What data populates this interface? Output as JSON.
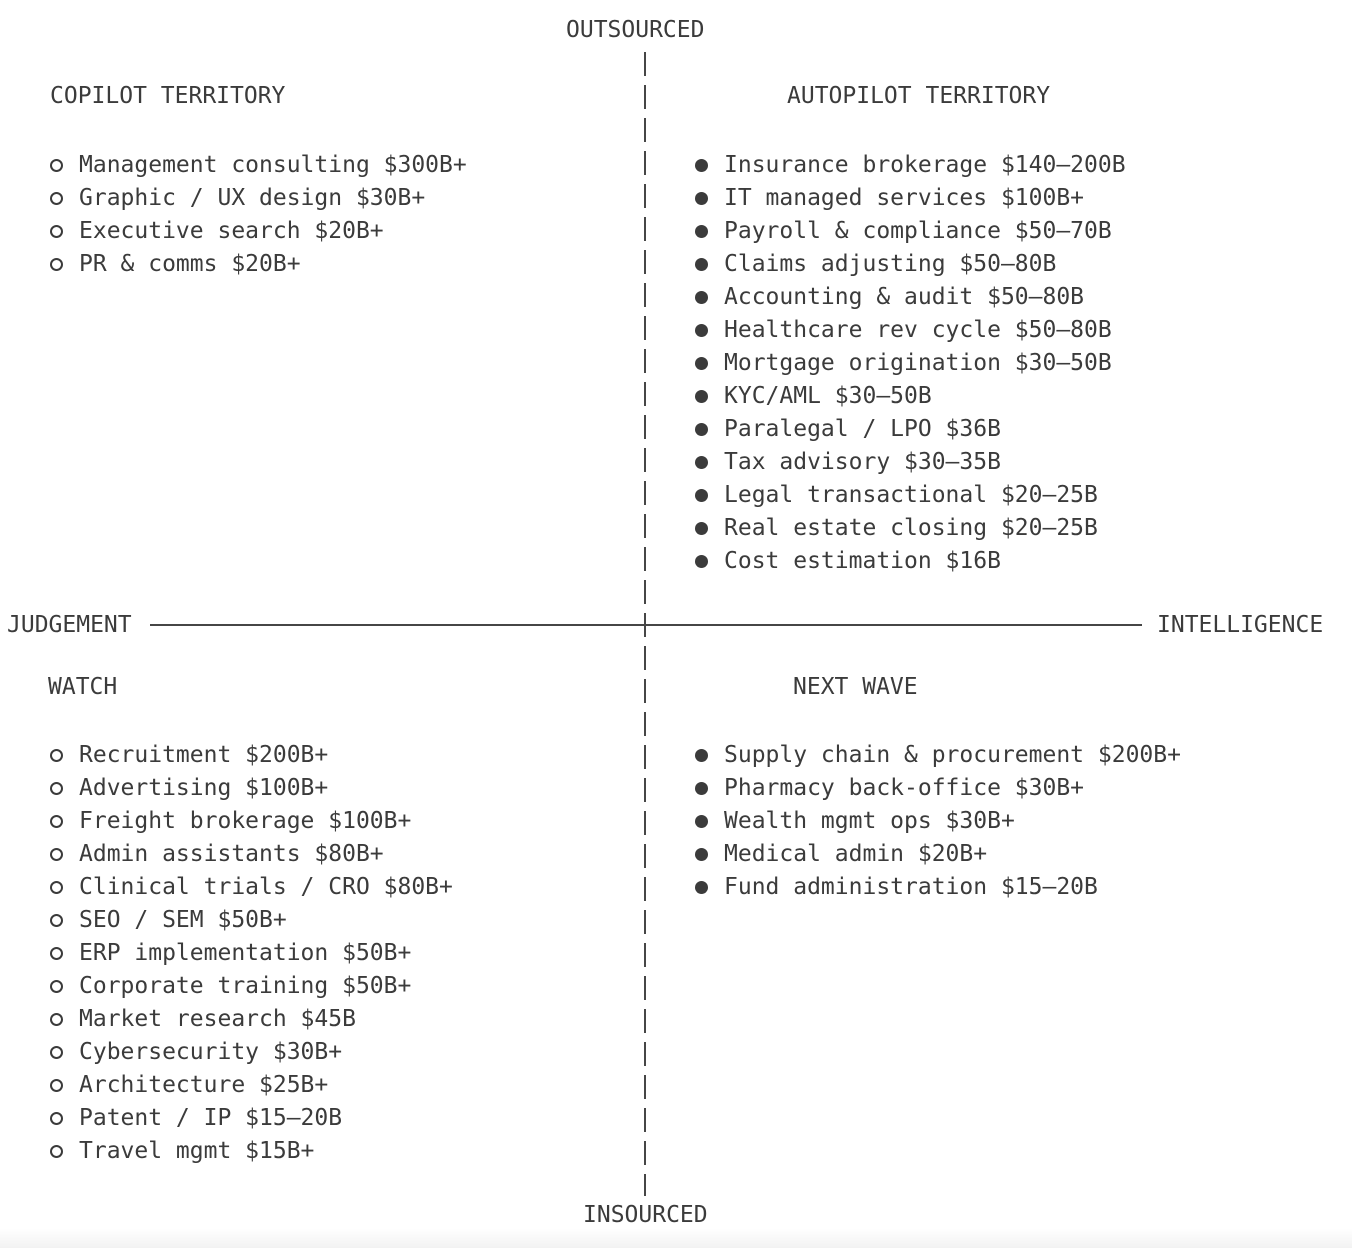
{
  "colors": {
    "text": "#3b3b3b",
    "line": "#464646",
    "background": "#ffffff"
  },
  "axes": {
    "top": "OUTSOURCED",
    "bottom": "INSOURCED",
    "left": "JUDGEMENT",
    "right": "INTELLIGENCE"
  },
  "quadrants": [
    {
      "id": "top-left",
      "title": "COPILOT TERRITORY",
      "bullet": "hollow",
      "items": [
        {
          "name": "Management consulting",
          "market": "$300B+"
        },
        {
          "name": "Graphic / UX design",
          "market": "$30B+"
        },
        {
          "name": "Executive search",
          "market": "$20B+"
        },
        {
          "name": "PR & comms",
          "market": "$20B+"
        }
      ]
    },
    {
      "id": "top-right",
      "title": "AUTOPILOT TERRITORY",
      "bullet": "filled",
      "items": [
        {
          "name": "Insurance brokerage",
          "market": "$140–200B"
        },
        {
          "name": "IT managed services",
          "market": "$100B+"
        },
        {
          "name": "Payroll & compliance",
          "market": "$50–70B"
        },
        {
          "name": "Claims adjusting",
          "market": "$50–80B"
        },
        {
          "name": "Accounting & audit",
          "market": "$50–80B"
        },
        {
          "name": "Healthcare rev cycle",
          "market": "$50–80B"
        },
        {
          "name": "Mortgage origination",
          "market": "$30–50B"
        },
        {
          "name": "KYC/AML",
          "market": "$30–50B"
        },
        {
          "name": "Paralegal / LPO",
          "market": "$36B"
        },
        {
          "name": "Tax advisory",
          "market": "$30–35B"
        },
        {
          "name": "Legal transactional",
          "market": "$20–25B"
        },
        {
          "name": "Real estate closing",
          "market": "$20–25B"
        },
        {
          "name": "Cost estimation",
          "market": "$16B"
        }
      ]
    },
    {
      "id": "bottom-left",
      "title": "WATCH",
      "bullet": "hollow",
      "items": [
        {
          "name": "Recruitment",
          "market": "$200B+"
        },
        {
          "name": "Advertising",
          "market": "$100B+"
        },
        {
          "name": "Freight brokerage",
          "market": "$100B+"
        },
        {
          "name": "Admin assistants",
          "market": "$80B+"
        },
        {
          "name": "Clinical trials / CRO",
          "market": "$80B+"
        },
        {
          "name": "SEO / SEM",
          "market": "$50B+"
        },
        {
          "name": "ERP implementation",
          "market": "$50B+"
        },
        {
          "name": "Corporate training",
          "market": "$50B+"
        },
        {
          "name": "Market research",
          "market": "$45B"
        },
        {
          "name": "Cybersecurity",
          "market": "$30B+"
        },
        {
          "name": "Architecture",
          "market": "$25B+"
        },
        {
          "name": "Patent / IP",
          "market": "$15–20B"
        },
        {
          "name": "Travel mgmt",
          "market": "$15B+"
        }
      ]
    },
    {
      "id": "bottom-right",
      "title": "NEXT WAVE",
      "bullet": "filled",
      "items": [
        {
          "name": "Supply chain & procurement",
          "market": "$200B+"
        },
        {
          "name": "Pharmacy back-office",
          "market": "$30B+"
        },
        {
          "name": "Wealth mgmt ops",
          "market": "$30B+"
        },
        {
          "name": "Medical admin",
          "market": "$20B+"
        },
        {
          "name": "Fund administration",
          "market": "$15–20B"
        }
      ]
    }
  ]
}
